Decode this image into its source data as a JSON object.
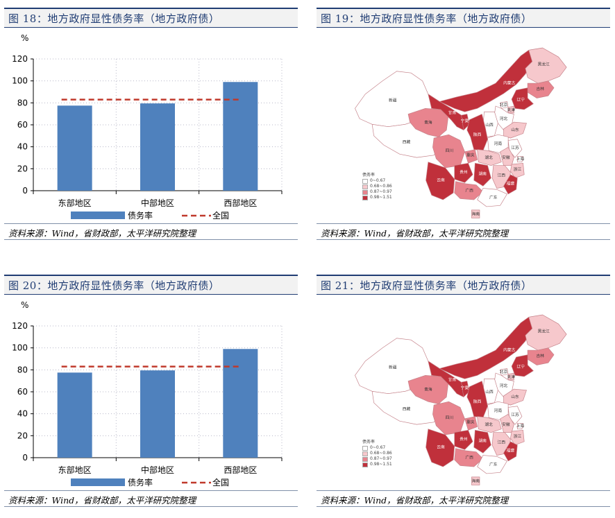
{
  "panels": {
    "fig18": {
      "title": "图 18：地方政府显性债务率（地方政府债）",
      "source": "资料来源：Wind，省财政部，太平洋研究院整理"
    },
    "fig19": {
      "title": "图 19：地方政府显性债务率（地方政府债）",
      "source": "资料来源：Wind，省财政部，太平洋研究院整理"
    },
    "fig20": {
      "title": "图 20：地方政府显性债务率（地方政府债）",
      "source": "资料来源：Wind，省财政部，太平洋研究院整理"
    },
    "fig21": {
      "title": "图 21：地方政府显性债务率（地方政府债）",
      "source": "资料来源：Wind，省财政部，太平洋研究院整理"
    }
  },
  "chart_data": [
    {
      "type": "bar",
      "unit_label": "%",
      "categories": [
        "东部地区",
        "中部地区",
        "西部地区"
      ],
      "series": [
        {
          "name": "债务率",
          "values": [
            77.5,
            79.5,
            99
          ]
        }
      ],
      "reference_line": {
        "name": "全国",
        "value": 83
      },
      "ylim": [
        0,
        120
      ],
      "yticks": [
        0,
        20,
        40,
        60,
        80,
        100,
        120
      ],
      "legend": "bottom",
      "grid": true
    },
    {
      "type": "bar",
      "unit_label": "%",
      "categories": [
        "东部地区",
        "中部地区",
        "西部地区"
      ],
      "series": [
        {
          "name": "债务率",
          "values": [
            77.5,
            79.5,
            99
          ]
        }
      ],
      "reference_line": {
        "name": "全国",
        "value": 83
      },
      "ylim": [
        0,
        120
      ],
      "yticks": [
        0,
        20,
        40,
        60,
        80,
        100,
        120
      ],
      "legend": "bottom",
      "grid": true
    }
  ],
  "map": {
    "legend_title": "债务率",
    "legend": [
      "0~0.67",
      "0.68~0.86",
      "0.87~0.97",
      "0.98~1.51"
    ],
    "colors": [
      "#ffffff",
      "#f6c8cc",
      "#e8848e",
      "#c0303b"
    ],
    "regions": [
      {
        "name": "新疆",
        "level": 0
      },
      {
        "name": "西藏",
        "level": 0
      },
      {
        "name": "青海",
        "level": 2
      },
      {
        "name": "甘肃",
        "level": 3
      },
      {
        "name": "内蒙古",
        "level": 3
      },
      {
        "name": "黑龙江",
        "level": 1
      },
      {
        "name": "吉林",
        "level": 2
      },
      {
        "name": "辽宁",
        "level": 3
      },
      {
        "name": "北京",
        "level": 0
      },
      {
        "name": "天津",
        "level": 1
      },
      {
        "name": "河北",
        "level": 0
      },
      {
        "name": "宁夏",
        "level": 3
      },
      {
        "name": "山西",
        "level": 0
      },
      {
        "name": "陕西",
        "level": 3
      },
      {
        "name": "山东",
        "level": 1
      },
      {
        "name": "河南",
        "level": 0
      },
      {
        "name": "江苏",
        "level": 0
      },
      {
        "name": "安徽",
        "level": 1
      },
      {
        "name": "上海",
        "level": 0
      },
      {
        "name": "四川",
        "level": 2
      },
      {
        "name": "重庆",
        "level": 2
      },
      {
        "name": "湖北",
        "level": 1
      },
      {
        "name": "浙江",
        "level": 1
      },
      {
        "name": "贵州",
        "level": 3
      },
      {
        "name": "湖南",
        "level": 3
      },
      {
        "name": "江西",
        "level": 1
      },
      {
        "name": "福建",
        "level": 3
      },
      {
        "name": "云南",
        "level": 3
      },
      {
        "name": "广西",
        "level": 2
      },
      {
        "name": "广东",
        "level": 0
      },
      {
        "name": "海南",
        "level": 1
      }
    ]
  }
}
